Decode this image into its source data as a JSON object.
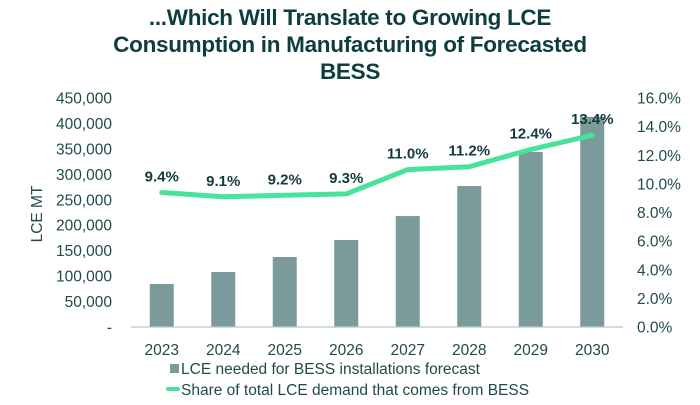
{
  "chart_data": {
    "type": "bar",
    "title": "...Which Will Translate to Growing LCE Consumption in Manufacturing of Forecasted BESS",
    "title_lines": [
      "...Which Will Translate to Growing LCE",
      "Consumption in Manufacturing of Forecasted",
      "BESS"
    ],
    "categories": [
      "2023",
      "2024",
      "2025",
      "2026",
      "2027",
      "2028",
      "2029",
      "2030"
    ],
    "ylabel": "LCE MT",
    "xlabel": "",
    "ylim": [
      0,
      450000
    ],
    "y2lim": [
      0,
      16
    ],
    "yticks": [
      "-",
      "50,000",
      "100,000",
      "150,000",
      "200,000",
      "250,000",
      "300,000",
      "350,000",
      "400,000",
      "450,000"
    ],
    "y2ticks": [
      "0.0%",
      "2.0%",
      "4.0%",
      "6.0%",
      "8.0%",
      "10.0%",
      "12.0%",
      "14.0%",
      "16.0%"
    ],
    "grid": false,
    "legend_position": "bottom",
    "series": [
      {
        "name": "LCE needed for BESS installations forecast",
        "type": "bar",
        "axis": "left",
        "color": "#7b9a9c",
        "values": [
          84500,
          108000,
          137500,
          171000,
          218000,
          277000,
          344000,
          413000
        ]
      },
      {
        "name": "Share of total LCE demand that comes from BESS",
        "type": "line",
        "axis": "right",
        "color": "#47e39a",
        "values": [
          9.4,
          9.1,
          9.2,
          9.3,
          11.0,
          11.2,
          12.4,
          13.4
        ],
        "labels": [
          "9.4%",
          "9.1%",
          "9.2%",
          "9.3%",
          "11.0%",
          "11.2%",
          "12.4%",
          "13.4%"
        ]
      }
    ]
  }
}
